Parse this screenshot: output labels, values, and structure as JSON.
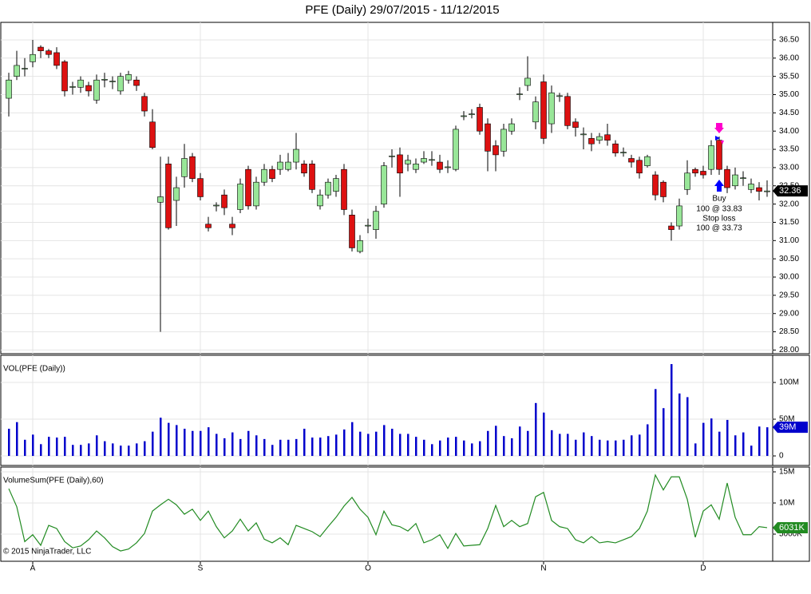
{
  "footer": "© 2015 NinjaTrader, LLC",
  "annotations": [
    "Buy",
    "100 @ 33.83",
    "Stop loss",
    "100 @ 33.73"
  ],
  "chart_data": [
    {
      "type": "candlestick",
      "title": "PFE (Daily)  29/07/2015 - 11/12/2015",
      "categories": [
        null,
        null,
        null,
        "A",
        null,
        null,
        null,
        null,
        null,
        null,
        null,
        null,
        null,
        null,
        null,
        null,
        null,
        null,
        null,
        null,
        null,
        null,
        null,
        null,
        "S",
        null,
        null,
        null,
        null,
        null,
        null,
        null,
        null,
        null,
        null,
        null,
        null,
        null,
        null,
        null,
        null,
        null,
        null,
        null,
        null,
        "O",
        null,
        null,
        null,
        null,
        null,
        null,
        null,
        null,
        null,
        null,
        null,
        null,
        null,
        null,
        null,
        null,
        null,
        null,
        null,
        null,
        null,
        "N",
        null,
        null,
        null,
        null,
        null,
        null,
        null,
        null,
        null,
        null,
        null,
        null,
        null,
        null,
        null,
        null,
        null,
        null,
        null,
        "D",
        null,
        null,
        null,
        null,
        null,
        null,
        null,
        null
      ],
      "open": [
        34.9,
        35.5,
        35.7,
        35.9,
        36.3,
        36.2,
        36.15,
        35.9,
        35.2,
        35.2,
        35.25,
        34.85,
        35.4,
        35.35,
        35.1,
        35.4,
        35.4,
        34.95,
        34.25,
        32.05,
        33.1,
        32.1,
        32.75,
        33.3,
        32.7,
        31.45,
        31.95,
        32.25,
        31.45,
        31.85,
        32.95,
        31.95,
        32.6,
        32.95,
        32.95,
        32.95,
        33.15,
        33.1,
        33.1,
        31.95,
        32.25,
        32.35,
        32.95,
        31.7,
        30.7,
        31.4,
        31.3,
        32.0,
        33.3,
        33.35,
        33.1,
        32.95,
        33.15,
        33.2,
        33.15,
        33.0,
        32.95,
        34.4,
        34.45,
        34.65,
        34.2,
        33.6,
        33.45,
        34.0,
        35.0,
        35.25,
        34.25,
        35.35,
        34.2,
        34.95,
        34.95,
        34.25,
        33.9,
        33.8,
        33.75,
        33.9,
        33.65,
        33.4,
        33.25,
        33.2,
        33.05,
        32.8,
        32.6,
        31.4,
        31.4,
        32.4,
        32.95,
        32.9,
        32.95,
        33.75,
        32.95,
        32.5,
        32.7,
        32.4,
        32.45,
        32.36
      ],
      "high": [
        35.6,
        36.2,
        36.0,
        36.5,
        36.35,
        36.25,
        36.3,
        35.95,
        35.35,
        35.5,
        35.35,
        35.55,
        35.6,
        35.5,
        35.6,
        35.65,
        35.5,
        35.05,
        34.6,
        33.3,
        33.3,
        32.75,
        33.65,
        33.4,
        32.85,
        31.65,
        32.05,
        32.4,
        31.65,
        32.7,
        33.05,
        32.75,
        33.1,
        33.05,
        33.35,
        33.4,
        33.95,
        33.2,
        33.2,
        32.4,
        32.7,
        32.8,
        33.1,
        31.85,
        31.15,
        31.6,
        31.95,
        33.15,
        33.5,
        33.55,
        33.35,
        33.25,
        33.45,
        33.45,
        33.35,
        33.2,
        34.15,
        34.55,
        34.6,
        34.75,
        34.35,
        33.75,
        34.2,
        34.35,
        35.2,
        36.05,
        34.95,
        35.55,
        35.25,
        35.05,
        35.05,
        34.35,
        34.1,
        33.95,
        33.95,
        34.2,
        33.75,
        33.55,
        33.35,
        33.3,
        33.35,
        32.9,
        32.65,
        31.5,
        32.15,
        33.2,
        33.0,
        33.05,
        33.75,
        33.85,
        33.05,
        33.0,
        32.9,
        32.7,
        32.6,
        32.65
      ],
      "low": [
        34.4,
        35.4,
        35.5,
        35.75,
        36.0,
        36.0,
        35.7,
        34.95,
        35.0,
        35.05,
        34.95,
        34.75,
        35.2,
        35.15,
        35.0,
        35.3,
        35.1,
        34.4,
        33.5,
        28.5,
        31.3,
        31.4,
        32.45,
        32.6,
        32.1,
        31.25,
        31.8,
        31.7,
        31.15,
        31.75,
        31.85,
        31.85,
        32.5,
        32.6,
        32.8,
        32.9,
        32.95,
        32.75,
        32.3,
        31.85,
        32.15,
        32.2,
        31.7,
        30.7,
        30.65,
        31.2,
        31.05,
        31.9,
        33.0,
        32.2,
        32.9,
        32.85,
        33.1,
        33.05,
        32.85,
        32.85,
        32.9,
        34.3,
        34.35,
        33.9,
        32.9,
        32.9,
        33.3,
        33.9,
        34.85,
        35.1,
        34.05,
        33.65,
        33.95,
        34.8,
        34.05,
        33.85,
        33.5,
        33.45,
        33.65,
        33.6,
        33.3,
        33.3,
        33.0,
        32.7,
        33.0,
        32.1,
        32.05,
        31.0,
        31.3,
        32.25,
        32.75,
        32.7,
        32.8,
        32.8,
        32.3,
        32.4,
        32.5,
        32.3,
        32.1,
        32.2
      ],
      "close": [
        35.4,
        35.8,
        35.72,
        36.1,
        36.2,
        36.1,
        35.8,
        35.1,
        35.22,
        35.4,
        35.1,
        35.4,
        35.42,
        35.37,
        35.5,
        35.55,
        35.25,
        34.55,
        33.55,
        32.2,
        31.35,
        32.45,
        33.25,
        32.7,
        32.2,
        31.35,
        31.97,
        31.9,
        31.35,
        32.55,
        31.95,
        32.6,
        32.95,
        32.7,
        33.15,
        33.15,
        33.5,
        32.85,
        32.4,
        32.25,
        32.6,
        32.7,
        31.85,
        30.8,
        31.0,
        31.42,
        31.8,
        33.05,
        33.32,
        32.85,
        33.2,
        33.1,
        33.25,
        33.22,
        32.95,
        33.02,
        34.05,
        34.42,
        34.47,
        34.0,
        33.45,
        33.35,
        34.05,
        34.2,
        35.02,
        35.45,
        34.8,
        33.8,
        35.05,
        34.97,
        34.15,
        34.1,
        33.92,
        33.65,
        33.85,
        33.75,
        33.4,
        33.42,
        33.15,
        32.85,
        33.3,
        32.25,
        32.2,
        31.3,
        31.95,
        32.85,
        32.85,
        32.8,
        33.6,
        32.95,
        32.45,
        32.8,
        32.72,
        32.55,
        32.35,
        32.36
      ],
      "up_color": "#98e698",
      "down_color": "#dd1111",
      "badge_color": "#000000",
      "current_value": {
        "value": 32.36,
        "label": "32.36"
      },
      "ylim": [
        27.9,
        36.98
      ],
      "yticks": [
        {
          "value": 28,
          "label": "28.00"
        },
        {
          "value": 28.5,
          "label": "28.50"
        },
        {
          "value": 29,
          "label": "29.00"
        },
        {
          "value": 29.5,
          "label": "29.50"
        },
        {
          "value": 30,
          "label": "30.00"
        },
        {
          "value": 30.5,
          "label": "30.50"
        },
        {
          "value": 31,
          "label": "31.00"
        },
        {
          "value": 31.5,
          "label": "31.50"
        },
        {
          "value": 32,
          "label": "32.00"
        },
        {
          "value": 32.5,
          "label": "32.50"
        },
        {
          "value": 33,
          "label": "33.00"
        },
        {
          "value": 33.5,
          "label": "33.50"
        },
        {
          "value": 34,
          "label": "34.00"
        },
        {
          "value": 34.5,
          "label": "34.50"
        },
        {
          "value": 35,
          "label": "35.00"
        },
        {
          "value": 35.5,
          "label": "35.50"
        },
        {
          "value": 36,
          "label": "36.00"
        },
        {
          "value": 36.5,
          "label": "36.50"
        }
      ],
      "grid": true
    },
    {
      "type": "bar",
      "title": "VOL(PFE (Daily))",
      "color": "#0000cc",
      "badge_color": "#0000cc",
      "values": [
        37,
        46,
        22,
        29,
        16,
        26,
        25,
        26,
        15,
        15,
        17,
        28,
        20,
        17,
        14,
        14,
        17,
        20,
        33,
        52,
        45,
        42,
        37,
        34,
        34,
        39,
        30,
        24,
        32,
        23,
        34,
        28,
        23,
        15,
        22,
        22,
        23,
        37,
        25,
        25,
        27,
        29,
        36,
        46,
        33,
        30,
        33,
        42,
        37,
        30,
        30,
        26,
        22,
        16,
        21,
        25,
        26,
        21,
        17,
        20,
        34,
        41,
        27,
        24,
        40,
        34,
        72,
        59,
        35,
        30,
        30,
        22,
        32,
        27,
        22,
        21,
        21,
        22,
        28,
        29,
        43,
        91,
        65,
        125,
        85,
        80,
        17,
        45,
        51,
        33,
        49,
        28,
        32,
        14,
        40,
        39
      ],
      "current_value": {
        "value": 39,
        "label": "39M"
      },
      "ylim": [
        -13,
        137
      ],
      "yticks": [
        0,
        {
          "value": 50,
          "label": "50M"
        },
        {
          "value": 100,
          "label": "100M"
        }
      ],
      "grid": true
    },
    {
      "type": "line",
      "title": "VolumeSum(PFE (Daily),60)",
      "color": "#228b22",
      "badge_color": "#228b22",
      "values": [
        12.3,
        9.4,
        3.8,
        4.9,
        3.2,
        6.4,
        5.9,
        3.8,
        2.8,
        3.1,
        4.1,
        5.5,
        4.4,
        3.0,
        2.3,
        2.6,
        3.6,
        5.1,
        8.7,
        9.7,
        10.6,
        9.7,
        8.2,
        9.0,
        7.2,
        8.7,
        6.2,
        4.4,
        5.5,
        7.4,
        5.5,
        6.8,
        4.2,
        3.6,
        4.4,
        3.3,
        6.4,
        5.9,
        5.4,
        4.6,
        6.2,
        7.7,
        9.5,
        10.9,
        9.0,
        7.7,
        4.9,
        8.7,
        6.5,
        6.2,
        5.5,
        6.7,
        3.6,
        4.1,
        4.9,
        2.7,
        5.1,
        3.1,
        3.2,
        3.3,
        5.9,
        9.6,
        6.2,
        7.2,
        6.2,
        6.7,
        11.0,
        11.7,
        7.2,
        6.2,
        5.9,
        4.1,
        3.6,
        4.6,
        3.6,
        3.8,
        3.6,
        4.1,
        4.6,
        5.9,
        8.7,
        14.5,
        12.1,
        14.2,
        14.2,
        10.6,
        4.5,
        8.7,
        9.7,
        7.4,
        13.2,
        7.7,
        4.9,
        4.9,
        6.2,
        6.031
      ],
      "current_value": {
        "value": 6.031,
        "label": "6031K"
      },
      "ylim": [
        0.64,
        15.77
      ],
      "yticks": [
        {
          "value": 5,
          "label": "5000K"
        },
        {
          "value": 10,
          "label": "10M"
        },
        {
          "value": 15,
          "label": "15M"
        }
      ],
      "grid": true
    }
  ]
}
